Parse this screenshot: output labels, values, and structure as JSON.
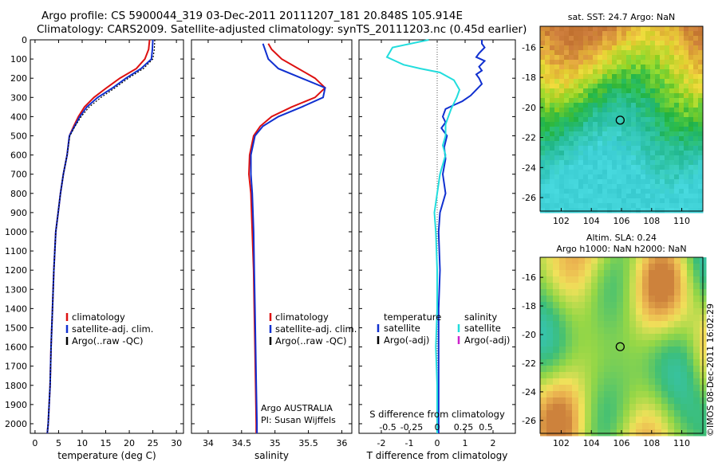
{
  "titles": {
    "line1": "Argo profile: CS 5900044_319 03-Dec-2011 20111207_181 20.848S 105.914E",
    "line2": "Climatology: CARS2009. Satellite-adjusted climatology: synTS_20111203.nc (0.45d earlier)"
  },
  "side_label": "©IMOS 08-Dec-2011 16:02:29",
  "colors": {
    "climatology": "#dd1111",
    "satellite": "#1030d0",
    "argo": "#000000",
    "sal_satellite": "#22dddd",
    "sal_argo": "#cc22cc",
    "zero_line": "#555555"
  },
  "chart_data": [
    {
      "type": "line",
      "id": "temperature",
      "xlabel": "temperature (deg C)",
      "xlim": [
        -1,
        31.5
      ],
      "ylim": [
        2050,
        0
      ],
      "xticks": [
        0,
        5,
        10,
        15,
        20,
        25,
        30
      ],
      "yticks": [
        0,
        100,
        200,
        300,
        400,
        500,
        600,
        700,
        800,
        900,
        1000,
        1100,
        1200,
        1300,
        1400,
        1500,
        1600,
        1700,
        1800,
        1900,
        2000
      ],
      "legend": [
        "climatology",
        "satellite-adj. clim.",
        "Argo(..raw -QC)"
      ],
      "series": [
        {
          "name": "climatology",
          "color_key": "climatology",
          "dash": false,
          "x": [
            24.3,
            24.1,
            23.3,
            21.5,
            18.0,
            15.2,
            12.5,
            10.5,
            9.2,
            8.2,
            7.3,
            6.8,
            6.0,
            5.4,
            4.9,
            4.4,
            4.0,
            3.7,
            3.4,
            3.2,
            3.0,
            2.8,
            2.6
          ],
          "y": [
            0,
            50,
            100,
            150,
            200,
            250,
            300,
            350,
            400,
            450,
            500,
            600,
            700,
            800,
            900,
            1000,
            1200,
            1400,
            1600,
            1800,
            1900,
            2000,
            2050
          ]
        },
        {
          "name": "satellite-adj. clim.",
          "color_key": "satellite",
          "dash": false,
          "x": [
            25.0,
            24.9,
            24.7,
            22.5,
            19.3,
            16.5,
            13.3,
            11.0,
            9.5,
            8.4,
            7.3,
            6.8,
            6.0,
            5.4,
            4.9,
            4.4,
            4.0,
            3.7,
            3.4,
            3.2,
            3.0,
            2.8,
            2.6
          ],
          "y": [
            0,
            50,
            100,
            150,
            200,
            250,
            300,
            350,
            400,
            450,
            500,
            600,
            700,
            800,
            900,
            1000,
            1200,
            1400,
            1600,
            1800,
            1900,
            2000,
            2050
          ]
        },
        {
          "name": "Argo(..raw -QC)",
          "color_key": "argo",
          "dash": true,
          "x": [
            25.4,
            25.3,
            25.0,
            23.0,
            19.8,
            17.0,
            14.0,
            11.5,
            9.8,
            8.5,
            7.4,
            6.8,
            6.0,
            5.4,
            4.9,
            4.4,
            4.0,
            3.7,
            3.4,
            3.2,
            3.0,
            2.8,
            2.6
          ],
          "y": [
            0,
            50,
            100,
            150,
            200,
            250,
            300,
            350,
            400,
            450,
            500,
            600,
            700,
            800,
            900,
            1000,
            1200,
            1400,
            1600,
            1800,
            1900,
            2000,
            2050
          ]
        }
      ]
    },
    {
      "type": "line",
      "id": "salinity",
      "xlabel": "salinity",
      "xlim": [
        33.75,
        36.15
      ],
      "ylim": [
        2050,
        0
      ],
      "xticks": [
        34,
        34.5,
        35,
        35.5,
        36
      ],
      "xticklabels": [
        "34",
        "34.5",
        "35",
        "35.5",
        "36"
      ],
      "legend": [
        "climatology",
        "satellite-adj. clim.",
        "Argo(..raw -QC)"
      ],
      "annotation": [
        "Argo AUSTRALIA",
        "PI: Susan Wijffels"
      ],
      "series": [
        {
          "name": "climatology",
          "color_key": "climatology",
          "dash": false,
          "x": [
            34.9,
            34.95,
            35.1,
            35.35,
            35.6,
            35.75,
            35.6,
            35.25,
            34.95,
            34.78,
            34.68,
            34.62,
            34.61,
            34.64,
            34.66,
            34.68,
            34.69,
            34.7,
            34.71,
            34.72,
            34.72
          ],
          "y": [
            20,
            50,
            100,
            150,
            200,
            250,
            300,
            350,
            400,
            450,
            500,
            600,
            700,
            800,
            1000,
            1200,
            1400,
            1600,
            1800,
            2000,
            2050
          ]
        },
        {
          "name": "satellite-adj. clim.",
          "color_key": "satellite",
          "dash": false,
          "x": [
            34.82,
            34.85,
            34.9,
            35.05,
            35.4,
            35.75,
            35.72,
            35.4,
            35.05,
            34.82,
            34.7,
            34.64,
            34.64,
            34.66,
            34.68,
            34.69,
            34.7,
            34.71,
            34.72,
            34.73,
            34.73
          ],
          "y": [
            20,
            50,
            100,
            150,
            200,
            250,
            300,
            350,
            400,
            450,
            500,
            600,
            700,
            800,
            1000,
            1200,
            1400,
            1600,
            1800,
            2000,
            2050
          ]
        }
      ]
    },
    {
      "type": "line",
      "id": "difference",
      "xlabel_bottom": "T difference from climatology",
      "xlabel_top": "S difference from climatology",
      "xlim": [
        -2.8,
        2.8
      ],
      "ylim": [
        2050,
        0
      ],
      "xticks": [
        -2,
        -1,
        0,
        1,
        2
      ],
      "xticks_top": [
        -0.5,
        -0.25,
        0,
        0.25,
        0.5
      ],
      "legend_temperature": {
        "title": "temperature",
        "items": [
          "satellite",
          "Argo(-adj)"
        ]
      },
      "legend_salinity": {
        "title": "salinity",
        "items": [
          "satellite",
          "Argo(-adj)"
        ]
      },
      "series": [
        {
          "name": "temperature satellite",
          "color_key": "satellite",
          "dash": false,
          "x": [
            1.6,
            1.6,
            1.7,
            1.5,
            1.4,
            1.7,
            1.5,
            1.6,
            1.4,
            1.5,
            1.6,
            1.4,
            1.2,
            0.9,
            0.6,
            0.3,
            0.2,
            0.3,
            0.15,
            0.35,
            0.25,
            0.3,
            0.2,
            0.3,
            0.1,
            0.05,
            0.1,
            0.05,
            0.05,
            0.05,
            0.05,
            0.05
          ],
          "y": [
            0,
            20,
            40,
            70,
            90,
            110,
            140,
            160,
            180,
            200,
            230,
            260,
            290,
            320,
            340,
            360,
            400,
            430,
            460,
            500,
            560,
            620,
            700,
            800,
            900,
            1000,
            1200,
            1400,
            1600,
            1800,
            2000,
            2050
          ]
        },
        {
          "name": "salinity satellite",
          "color_key": "sal_satellite",
          "dash": false,
          "x": [
            -0.3,
            -1.6,
            -1.8,
            -1.5,
            -1.2,
            -0.6,
            0.1,
            0.6,
            0.8,
            0.7,
            0.6,
            0.5,
            0.4,
            0.3,
            0.3,
            0.2,
            0.3,
            0.1,
            0.0,
            -0.1,
            -0.05,
            0.0,
            0.0,
            -0.05,
            0.0,
            0.0
          ],
          "y": [
            0,
            40,
            90,
            110,
            130,
            150,
            170,
            210,
            260,
            300,
            330,
            360,
            400,
            440,
            500,
            550,
            600,
            700,
            800,
            900,
            1000,
            1200,
            1400,
            1600,
            1800,
            2050
          ]
        }
      ]
    }
  ],
  "maps": [
    {
      "id": "sst",
      "title": "sat. SST: 24.7  Argo: NaN",
      "xticks": [
        102,
        104,
        106,
        108,
        110
      ],
      "yticks": [
        -16,
        -18,
        -20,
        -22,
        -24,
        -26
      ],
      "marker": {
        "lon": 105.914,
        "lat": -20.848
      }
    },
    {
      "id": "sla",
      "title_line1": "Altim. SLA: 0.24",
      "title_line2": "Argo h1000: NaN  h2000: NaN",
      "xticks": [
        102,
        104,
        106,
        108,
        110
      ],
      "yticks": [
        -16,
        -18,
        -20,
        -22,
        -24,
        -26
      ],
      "marker": {
        "lon": 105.914,
        "lat": -20.848
      }
    }
  ]
}
